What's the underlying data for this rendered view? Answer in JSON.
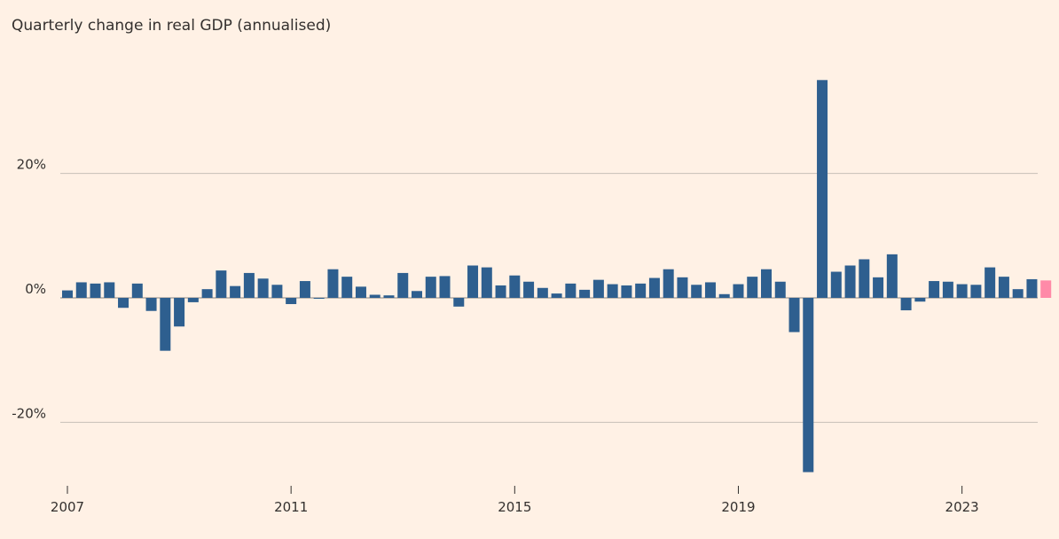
{
  "chart_data": {
    "type": "bar",
    "title": "Quarterly change in real GDP (annualised)",
    "xlabel": "",
    "ylabel": "",
    "ylim": [
      -28.5,
      35
    ],
    "y_ticks": [
      {
        "value": 20,
        "label": "20%"
      },
      {
        "value": 0,
        "label": "0%"
      },
      {
        "value": -20,
        "label": "-20%"
      }
    ],
    "x_ticks": [
      {
        "category": "2007 Q1",
        "label": "2007"
      },
      {
        "category": "2011 Q1",
        "label": "2011"
      },
      {
        "category": "2015 Q1",
        "label": "2015"
      },
      {
        "category": "2019 Q1",
        "label": "2019"
      },
      {
        "category": "2023 Q1",
        "label": "2023"
      }
    ],
    "grid": true,
    "colors": {
      "bar": "#2e5f8f",
      "highlight": "#ff8aa8",
      "grid": "#c7bfb7",
      "zero": "#8a8580"
    },
    "highlight_index": 70,
    "categories": [
      "2007 Q1",
      "2007 Q2",
      "2007 Q3",
      "2007 Q4",
      "2008 Q1",
      "2008 Q2",
      "2008 Q3",
      "2008 Q4",
      "2009 Q1",
      "2009 Q2",
      "2009 Q3",
      "2009 Q4",
      "2010 Q1",
      "2010 Q2",
      "2010 Q3",
      "2010 Q4",
      "2011 Q1",
      "2011 Q2",
      "2011 Q3",
      "2011 Q4",
      "2012 Q1",
      "2012 Q2",
      "2012 Q3",
      "2012 Q4",
      "2013 Q1",
      "2013 Q2",
      "2013 Q3",
      "2013 Q4",
      "2014 Q1",
      "2014 Q2",
      "2014 Q3",
      "2014 Q4",
      "2015 Q1",
      "2015 Q2",
      "2015 Q3",
      "2015 Q4",
      "2016 Q1",
      "2016 Q2",
      "2016 Q3",
      "2016 Q4",
      "2017 Q1",
      "2017 Q2",
      "2017 Q3",
      "2017 Q4",
      "2018 Q1",
      "2018 Q2",
      "2018 Q3",
      "2018 Q4",
      "2019 Q1",
      "2019 Q2",
      "2019 Q3",
      "2019 Q4",
      "2020 Q1",
      "2020 Q2",
      "2020 Q3",
      "2020 Q4",
      "2021 Q1",
      "2021 Q2",
      "2021 Q3",
      "2021 Q4",
      "2022 Q1",
      "2022 Q2",
      "2022 Q3",
      "2022 Q4",
      "2023 Q1",
      "2023 Q2",
      "2023 Q3",
      "2023 Q4",
      "2024 Q1",
      "2024 Q2",
      "2024 Q3"
    ],
    "values": [
      1.2,
      2.5,
      2.3,
      2.5,
      -1.6,
      2.3,
      -2.1,
      -8.5,
      -4.6,
      -0.7,
      1.4,
      4.4,
      1.9,
      4.0,
      3.1,
      2.1,
      -1.0,
      2.7,
      -0.1,
      4.6,
      3.4,
      1.8,
      0.5,
      0.4,
      4.0,
      1.1,
      3.4,
      3.5,
      -1.4,
      5.2,
      4.9,
      2.0,
      3.6,
      2.6,
      1.6,
      0.7,
      2.3,
      1.3,
      2.9,
      2.2,
      2.0,
      2.3,
      3.2,
      4.6,
      3.3,
      2.1,
      2.5,
      0.6,
      2.2,
      3.4,
      4.6,
      2.6,
      -5.5,
      -28.0,
      35.0,
      4.2,
      5.2,
      6.2,
      3.3,
      7.0,
      -2.0,
      -0.6,
      2.7,
      2.6,
      2.2,
      2.1,
      4.9,
      3.4,
      1.4,
      3.0,
      2.8
    ]
  }
}
